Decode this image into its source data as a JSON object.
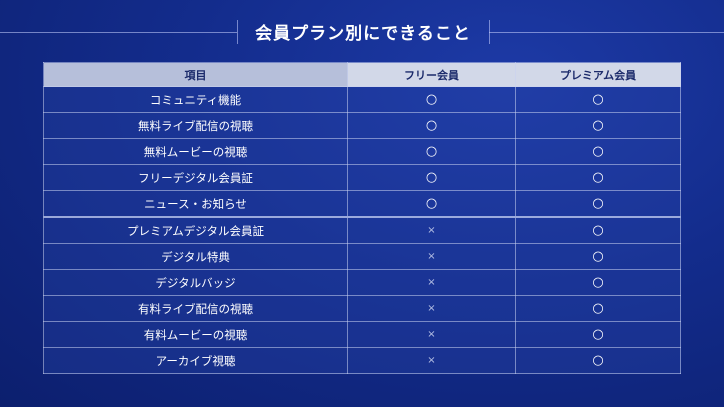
{
  "title": "会員プラン別にできること",
  "headers": [
    "項目",
    "フリー会員",
    "プレミアム会員"
  ],
  "rows": [
    {
      "item": "コミュニティ機能",
      "free": "○",
      "premium": "○"
    },
    {
      "item": "無料ライブ配信の視聴",
      "free": "○",
      "premium": "○"
    },
    {
      "item": "無料ムービーの視聴",
      "free": "○",
      "premium": "○"
    },
    {
      "item": "フリーデジタル会員証",
      "free": "○",
      "premium": "○"
    },
    {
      "item": "ニュース・お知らせ",
      "free": "○",
      "premium": "○"
    },
    {
      "item": "プレミアムデジタル会員証",
      "free": "×",
      "premium": "○"
    },
    {
      "item": "デジタル特典",
      "free": "×",
      "premium": "○"
    },
    {
      "item": "デジタルバッジ",
      "free": "×",
      "premium": "○"
    },
    {
      "item": "有料ライブ配信の視聴",
      "free": "×",
      "premium": "○"
    },
    {
      "item": "有料ムービーの視聴",
      "free": "×",
      "premium": "○"
    },
    {
      "item": "アーカイブ視聴",
      "free": "×",
      "premium": "○"
    }
  ],
  "colors": {
    "background": "#132c8c",
    "header": "#d2d8e8",
    "header_text": "#1b2a6a"
  }
}
